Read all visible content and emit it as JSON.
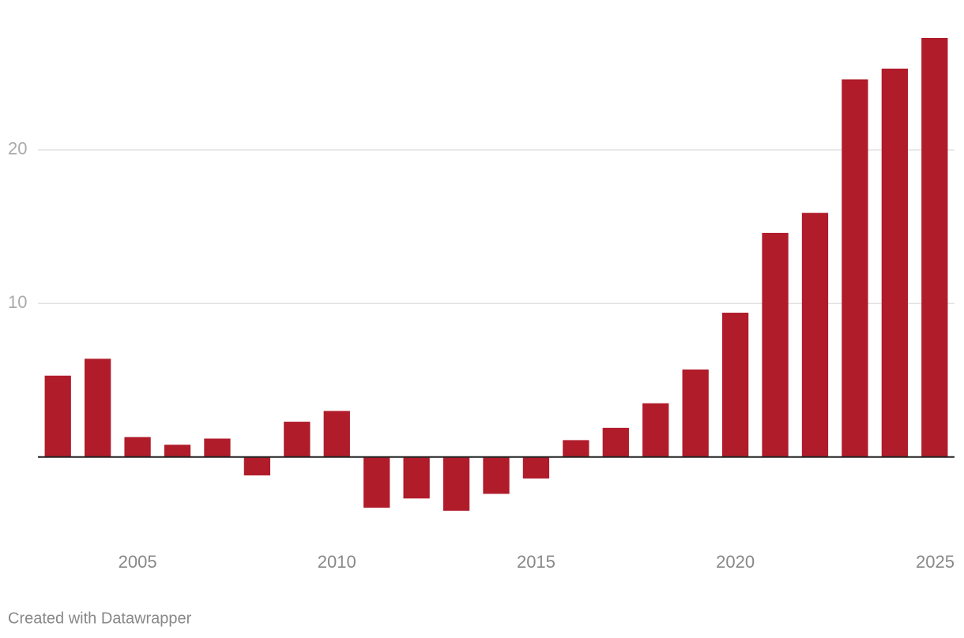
{
  "chart_data": {
    "type": "bar",
    "x": [
      2003,
      2004,
      2005,
      2006,
      2007,
      2008,
      2009,
      2010,
      2011,
      2012,
      2013,
      2014,
      2015,
      2016,
      2017,
      2018,
      2019,
      2020,
      2021,
      2022,
      2023,
      2024,
      2025
    ],
    "values": [
      5.3,
      6.4,
      1.3,
      0.8,
      1.2,
      -1.2,
      2.3,
      3.0,
      -3.3,
      -2.7,
      -3.5,
      -2.4,
      -1.4,
      1.1,
      1.9,
      3.5,
      5.7,
      9.4,
      14.6,
      15.9,
      24.6,
      25.3,
      27.3
    ],
    "color": "#b01c2a",
    "xlim": [
      2002.5,
      2025.5
    ],
    "xticks": [
      2005,
      2010,
      2015,
      2020,
      2025
    ],
    "ylim": [
      -5,
      30
    ],
    "yticks": [
      10,
      20
    ],
    "grid": true,
    "footer": "Created with Datawrapper"
  }
}
